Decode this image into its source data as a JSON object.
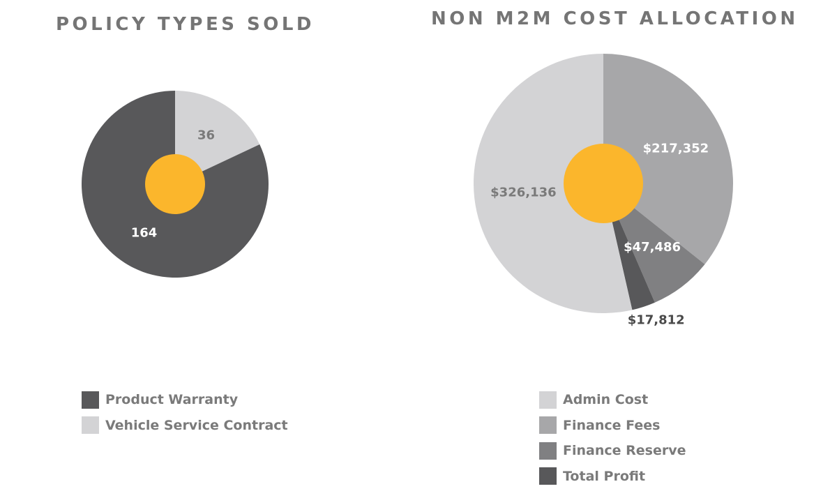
{
  "chart_data": [
    {
      "type": "pie",
      "title": "POLICY TYPES SOLD",
      "start_angle_deg": 0,
      "direction": "clockwise",
      "center_dot_color": "#fbb62c",
      "slices": [
        {
          "label": "Vehicle Service Contract",
          "value": 36,
          "display": "36",
          "color": "#d3d3d5",
          "label_color": "#7a7a7a"
        },
        {
          "label": "Product Warranty",
          "value": 164,
          "display": "164",
          "color": "#58585a",
          "label_color": "#ffffff"
        }
      ],
      "legend": [
        {
          "label": "Product Warranty",
          "color": "#58585a"
        },
        {
          "label": "Vehicle Service Contract",
          "color": "#d3d3d5"
        }
      ],
      "legend_position": "bottom-left"
    },
    {
      "type": "pie",
      "title": "NON M2M COST ALLOCATION",
      "start_angle_deg": 0,
      "direction": "clockwise",
      "center_dot_color": "#fbb62c",
      "slices": [
        {
          "label": "Finance Fees",
          "value": 217352,
          "display": "$217,352",
          "color": "#a7a7a9",
          "label_color": "#ffffff"
        },
        {
          "label": "Finance Reserve",
          "value": 47486,
          "display": "$47,486",
          "color": "#808082",
          "label_color": "#ffffff"
        },
        {
          "label": "Total Profit",
          "value": 17812,
          "display": "$17,812",
          "color": "#58585a",
          "label_color": "#4a4a4a"
        },
        {
          "label": "Admin Cost",
          "value": 326136,
          "display": "$326,136",
          "color": "#d3d3d5",
          "label_color": "#7a7a7a"
        }
      ],
      "legend": [
        {
          "label": "Admin Cost",
          "color": "#d3d3d5"
        },
        {
          "label": "Finance Fees",
          "color": "#a7a7a9"
        },
        {
          "label": "Finance Reserve",
          "color": "#808082"
        },
        {
          "label": "Total Profit",
          "color": "#58585a"
        }
      ],
      "legend_position": "bottom"
    }
  ]
}
